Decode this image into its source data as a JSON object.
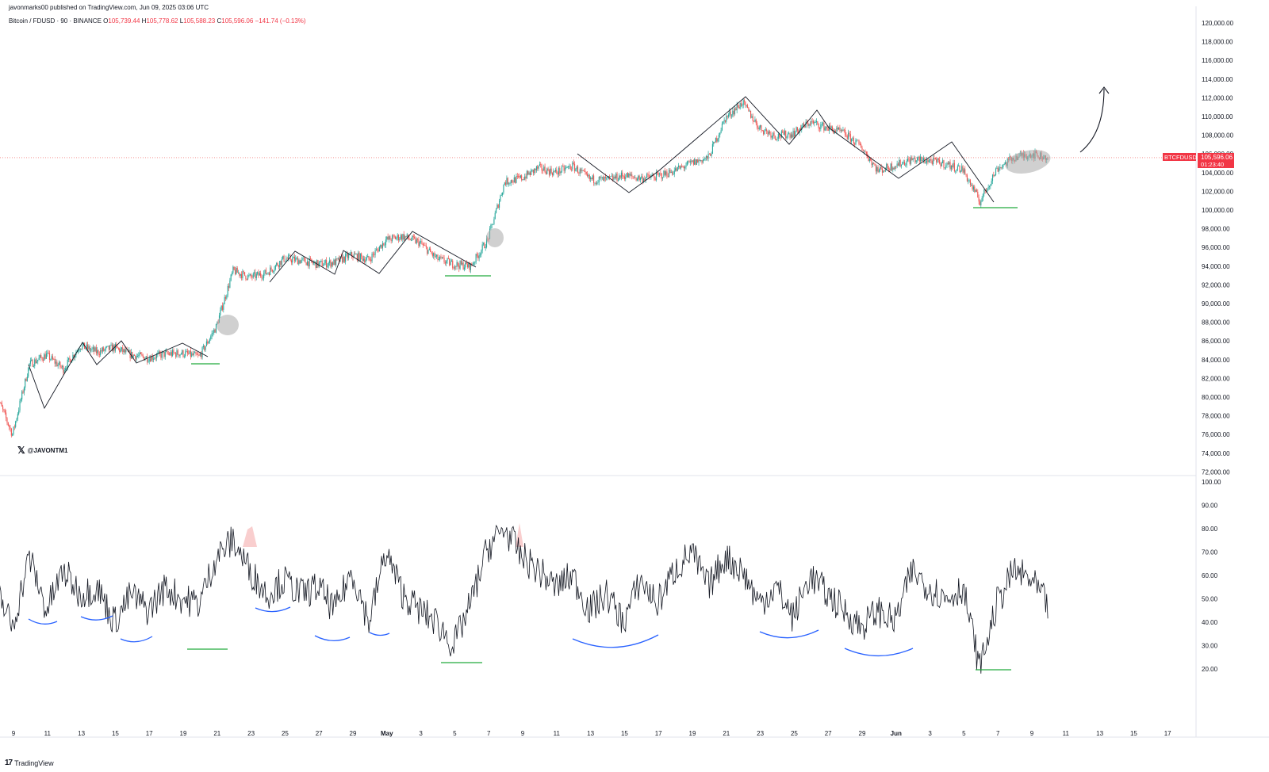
{
  "header": {
    "publisher_line": "javonmarks00 published on TradingView.com, Jun 09, 2025 03:06 UTC",
    "symbol_line": "Bitcoin / FDUSD · 90 · BINANCE",
    "open_label": "O",
    "open": "105,739.44",
    "high_label": "H",
    "high": "105,778.62",
    "low_label": "L",
    "low": "105,588.23",
    "close_label": "C",
    "close": "105,596.06",
    "change": "−141.74 (−0.13%)"
  },
  "watermark": {
    "text": "@JAVONTM1",
    "icon": "x-logo-icon"
  },
  "footer": {
    "brand": "TradingView",
    "icon": "tradingview-logo-icon"
  },
  "price_badge": {
    "ticker": "BTCFDUSD",
    "price": "105,596.06",
    "countdown": "01:23:40",
    "color": "#f23645"
  },
  "colors": {
    "up": "#26a69a",
    "down": "#ef5350",
    "annotation_blue": "#2962ff",
    "annotation_green": "#22ab3c",
    "line": "#131722"
  },
  "chart_data": [
    {
      "type": "line",
      "title": "Bitcoin / FDUSD · 90 · BINANCE",
      "style": "candlestick",
      "x": [
        "Apr 8",
        "Apr 9",
        "Apr 10",
        "Apr 11",
        "Apr 12",
        "Apr 13",
        "Apr 14",
        "Apr 15",
        "Apr 16",
        "Apr 17",
        "Apr 18",
        "Apr 19",
        "Apr 20",
        "Apr 21",
        "Apr 22",
        "Apr 23",
        "Apr 24",
        "Apr 25",
        "Apr 26",
        "Apr 27",
        "Apr 28",
        "Apr 29",
        "Apr 30",
        "May 1",
        "May 2",
        "May 3",
        "May 4",
        "May 5",
        "May 6",
        "May 7",
        "May 8",
        "May 9",
        "May 10",
        "May 11",
        "May 12",
        "May 13",
        "May 14",
        "May 15",
        "May 16",
        "May 17",
        "May 18",
        "May 19",
        "May 20",
        "May 21",
        "May 22",
        "May 23",
        "May 24",
        "May 25",
        "May 26",
        "May 27",
        "May 28",
        "May 29",
        "May 30",
        "May 31",
        "Jun 1",
        "Jun 2",
        "Jun 3",
        "Jun 4",
        "Jun 5",
        "Jun 6",
        "Jun 7",
        "Jun 8",
        "Jun 9"
      ],
      "y": [
        80500,
        76000,
        83500,
        84500,
        83000,
        85500,
        84800,
        85300,
        84500,
        84200,
        84600,
        84700,
        84300,
        87500,
        93500,
        92800,
        93300,
        94800,
        94600,
        94200,
        94400,
        95200,
        94700,
        96800,
        97200,
        96500,
        94800,
        94200,
        94000,
        96800,
        103000,
        103400,
        104500,
        104000,
        104700,
        103300,
        103200,
        103700,
        103400,
        103600,
        104200,
        105000,
        105600,
        109800,
        111500,
        108800,
        107900,
        108200,
        109400,
        108800,
        108200,
        106800,
        104200,
        104800,
        105400,
        105300,
        104900,
        104300,
        100900,
        104400,
        105600,
        106000,
        105596
      ],
      "ylim": [
        70000,
        122000
      ],
      "ytick_labels": [
        "72,000.00",
        "74,000.00",
        "76,000.00",
        "78,000.00",
        "80,000.00",
        "82,000.00",
        "84,000.00",
        "86,000.00",
        "88,000.00",
        "90,000.00",
        "92,000.00",
        "94,000.00",
        "96,000.00",
        "98,000.00",
        "100,000.00",
        "102,000.00",
        "104,000.00",
        "106,000.00",
        "108,000.00",
        "110,000.00",
        "112,000.00",
        "114,000.00",
        "116,000.00",
        "118,000.00",
        "120,000.00"
      ]
    },
    {
      "type": "line",
      "title": "",
      "x": [
        "Apr 8",
        "Apr 9",
        "Apr 10",
        "Apr 11",
        "Apr 12",
        "Apr 13",
        "Apr 14",
        "Apr 15",
        "Apr 16",
        "Apr 17",
        "Apr 18",
        "Apr 19",
        "Apr 20",
        "Apr 21",
        "Apr 22",
        "Apr 23",
        "Apr 24",
        "Apr 25",
        "Apr 26",
        "Apr 27",
        "Apr 28",
        "Apr 29",
        "Apr 30",
        "May 1",
        "May 2",
        "May 3",
        "May 4",
        "May 5",
        "May 6",
        "May 7",
        "May 8",
        "May 9",
        "May 10",
        "May 11",
        "May 12",
        "May 13",
        "May 14",
        "May 15",
        "May 16",
        "May 17",
        "May 18",
        "May 19",
        "May 20",
        "May 21",
        "May 22",
        "May 23",
        "May 24",
        "May 25",
        "May 26",
        "May 27",
        "May 28",
        "May 29",
        "May 30",
        "May 31",
        "Jun 1",
        "Jun 2",
        "Jun 3",
        "Jun 4",
        "Jun 5",
        "Jun 6",
        "Jun 7",
        "Jun 8",
        "Jun 9"
      ],
      "y": [
        55,
        38,
        68,
        45,
        62,
        52,
        55,
        40,
        52,
        45,
        55,
        50,
        48,
        68,
        75,
        62,
        52,
        58,
        52,
        55,
        45,
        62,
        40,
        70,
        52,
        45,
        40,
        30,
        48,
        72,
        80,
        68,
        62,
        55,
        60,
        45,
        52,
        40,
        58,
        48,
        62,
        70,
        55,
        68,
        62,
        48,
        55,
        42,
        60,
        52,
        45,
        38,
        45,
        40,
        62,
        55,
        50,
        55,
        20,
        48,
        62,
        58,
        47
      ],
      "ylim": [
        10,
        100
      ],
      "ytick_labels": [
        "20.00",
        "30.00",
        "40.00",
        "50.00",
        "60.00",
        "70.00",
        "80.00",
        "90.00",
        "100.00"
      ],
      "overbought_fill": "#f8c9c9"
    }
  ],
  "x_axis": {
    "labels": [
      "9",
      "11",
      "13",
      "15",
      "17",
      "19",
      "21",
      "23",
      "25",
      "27",
      "29",
      "May",
      "3",
      "5",
      "7",
      "9",
      "11",
      "13",
      "15",
      "17",
      "19",
      "21",
      "23",
      "25",
      "27",
      "29",
      "Jun",
      "3",
      "5",
      "7",
      "9",
      "11",
      "13",
      "15",
      "17"
    ]
  }
}
